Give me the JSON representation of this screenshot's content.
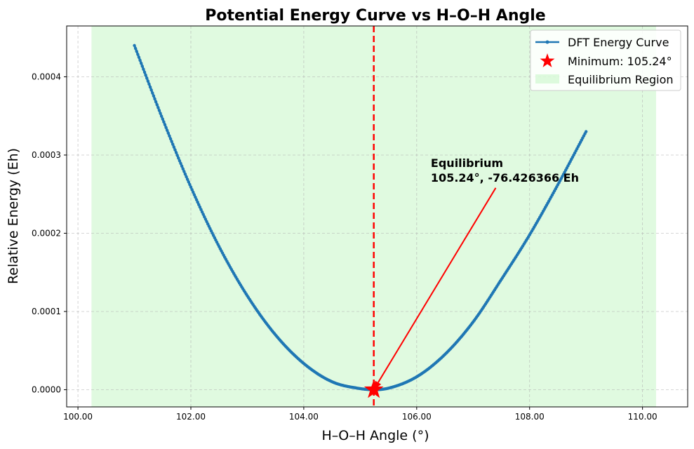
{
  "chart_data": {
    "type": "line",
    "title": "Potential Energy Curve vs H–O–H Angle",
    "xlabel": "H–O–H Angle (°)",
    "ylabel": "Relative Energy (Eh)",
    "xlim": [
      99.8,
      110.8
    ],
    "ylim": [
      -2.2e-05,
      0.000465
    ],
    "x_ticks": [
      100,
      102,
      104,
      106,
      108,
      110
    ],
    "x_tick_labels": [
      "100.00",
      "102.00",
      "104.00",
      "106.00",
      "108.00",
      "110.00"
    ],
    "y_ticks": [
      0,
      0.0001,
      0.0002,
      0.0003,
      0.0004
    ],
    "y_tick_labels": [
      "0.0000",
      "0.0001",
      "0.0002",
      "0.0003",
      "0.0004"
    ],
    "grid": true,
    "legend_position": "top-right",
    "series": [
      {
        "name": "DFT Energy Curve",
        "color": "#1f77b4",
        "x": [
          101.0,
          101.5,
          102.0,
          102.5,
          103.0,
          103.5,
          104.0,
          104.5,
          105.0,
          105.24,
          105.5,
          106.0,
          106.5,
          107.0,
          107.5,
          108.0,
          108.5,
          109.0
        ],
        "y": [
          0.00044,
          0.000346,
          0.000259,
          0.000183,
          0.00012,
          7e-05,
          3.35e-05,
          1.02e-05,
          1.4e-06,
          0.0,
          1.9e-06,
          1.65e-05,
          4.51e-05,
          8.67e-05,
          0.000141,
          0.000198,
          0.000262,
          0.00033
        ]
      }
    ],
    "minimum": {
      "label": "Minimum: 105.24°",
      "x": 105.24,
      "y": 0.0,
      "color": "#ff0000"
    },
    "vline": {
      "x": 105.24,
      "color": "#ff0000",
      "style": "dashed"
    },
    "region": {
      "label": "Equilibrium Region",
      "x_start": 100.24,
      "x_end": 110.24,
      "color": "#90ee90"
    },
    "annotation": {
      "line1": "Equilibrium",
      "line2": "105.24°, -76.426366 Eh",
      "text_x": 106.25,
      "text_y": 0.000265,
      "arrow_from_x": 107.4,
      "arrow_from_y": 0.000258,
      "arrow_to_x": 105.24,
      "arrow_to_y": 0.0,
      "color": "#ff0000"
    }
  }
}
